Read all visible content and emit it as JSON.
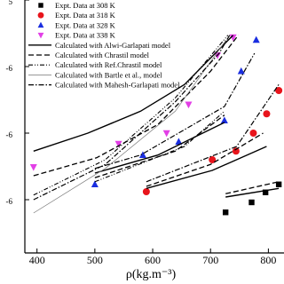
{
  "chart_data": {
    "type": "scatter",
    "x_label": "ρ(kg.m⁻³)",
    "xlim": [
      379,
      827
    ],
    "xticks": [
      400,
      500,
      600,
      700,
      800
    ],
    "ylim": [
      -0.8,
      3
    ],
    "yticks": [
      {
        "value": 0,
        "label": "-6"
      },
      {
        "value": 1,
        "label": "-6"
      },
      {
        "value": 2,
        "label": "-6"
      },
      {
        "value": 3,
        "label": "5"
      }
    ],
    "series": [
      {
        "name": "Expt. Data at 308 K",
        "color": "#000000",
        "marker": "square",
        "x": [
          726,
          771,
          795,
          818
        ],
        "values": [
          -0.19,
          -0.04,
          0.11,
          0.23
        ]
      },
      {
        "name": "Expt. Data at 318 K",
        "color": "#e8141b",
        "marker": "circle",
        "x": [
          589,
          703,
          744,
          774,
          797,
          818
        ],
        "values": [
          0.12,
          0.6,
          0.73,
          1.0,
          1.29,
          1.64
        ]
      },
      {
        "name": "Expt. Data at 328 K",
        "color": "#1a2ee0",
        "marker": "triangle",
        "x": [
          500,
          583,
          645,
          724,
          753,
          779
        ],
        "values": [
          0.23,
          0.67,
          0.87,
          1.19,
          1.93,
          2.4
        ]
      },
      {
        "name": "Expt. Data at 338 K",
        "color": "#e23fe6",
        "marker": "triangle-down",
        "x": [
          394,
          541,
          624,
          662,
          712,
          739
        ],
        "values": [
          0.49,
          0.84,
          1.0,
          1.43,
          2.17,
          2.44
        ]
      },
      {
        "name": "Calculated with Alwi-Garlapati model",
        "color": "#000000",
        "style": "solid",
        "x": [
          394,
          488,
          579,
          655,
          739,
          null,
          500,
          609,
          724,
          null,
          589,
          703,
          797,
          null,
          726,
          818
        ],
        "values": [
          0.73,
          1.0,
          1.33,
          1.73,
          2.47,
          null,
          0.4,
          0.67,
          1.16,
          null,
          0.17,
          0.44,
          0.8,
          null,
          0.04,
          0.17
        ]
      },
      {
        "name": "Calculated with Chrastil model",
        "color": "#000000",
        "style": "dashed",
        "x": [
          394,
          503,
          609,
          700,
          748,
          null,
          500,
          639,
          724,
          null,
          589,
          700,
          791,
          null,
          726,
          818
        ],
        "values": [
          0.36,
          0.63,
          1.13,
          1.93,
          2.47,
          null,
          0.33,
          0.73,
          1.27,
          null,
          0.2,
          0.53,
          1.0,
          null,
          0.09,
          0.27
        ]
      },
      {
        "name": "Calculated with Ref.Chrastil model",
        "color": "#000000",
        "style": "dashdotdot",
        "x": [
          394,
          518,
          639,
          730,
          null,
          500,
          655,
          724
        ],
        "values": [
          0.07,
          0.6,
          1.53,
          2.47,
          null,
          0.27,
          0.8,
          1.33
        ]
      },
      {
        "name": "Calculated with Bartle et al., model",
        "color": "#777777",
        "style": "thin",
        "x": [
          394,
          518,
          639,
          727
        ],
        "values": [
          -0.2,
          0.47,
          1.33,
          2.4
        ]
      },
      {
        "name": "Calculated with Mahesh-Garlapati model",
        "color": "#000000",
        "style": "dashdot",
        "x": [
          394,
          518,
          639,
          715,
          733,
          null,
          500,
          579,
          724,
          776,
          null,
          589,
          745,
          818
        ],
        "values": [
          0.0,
          0.53,
          1.47,
          2.2,
          2.47,
          null,
          0.47,
          0.67,
          1.4,
          2.2,
          null,
          0.27,
          0.8,
          1.73
        ]
      }
    ]
  }
}
